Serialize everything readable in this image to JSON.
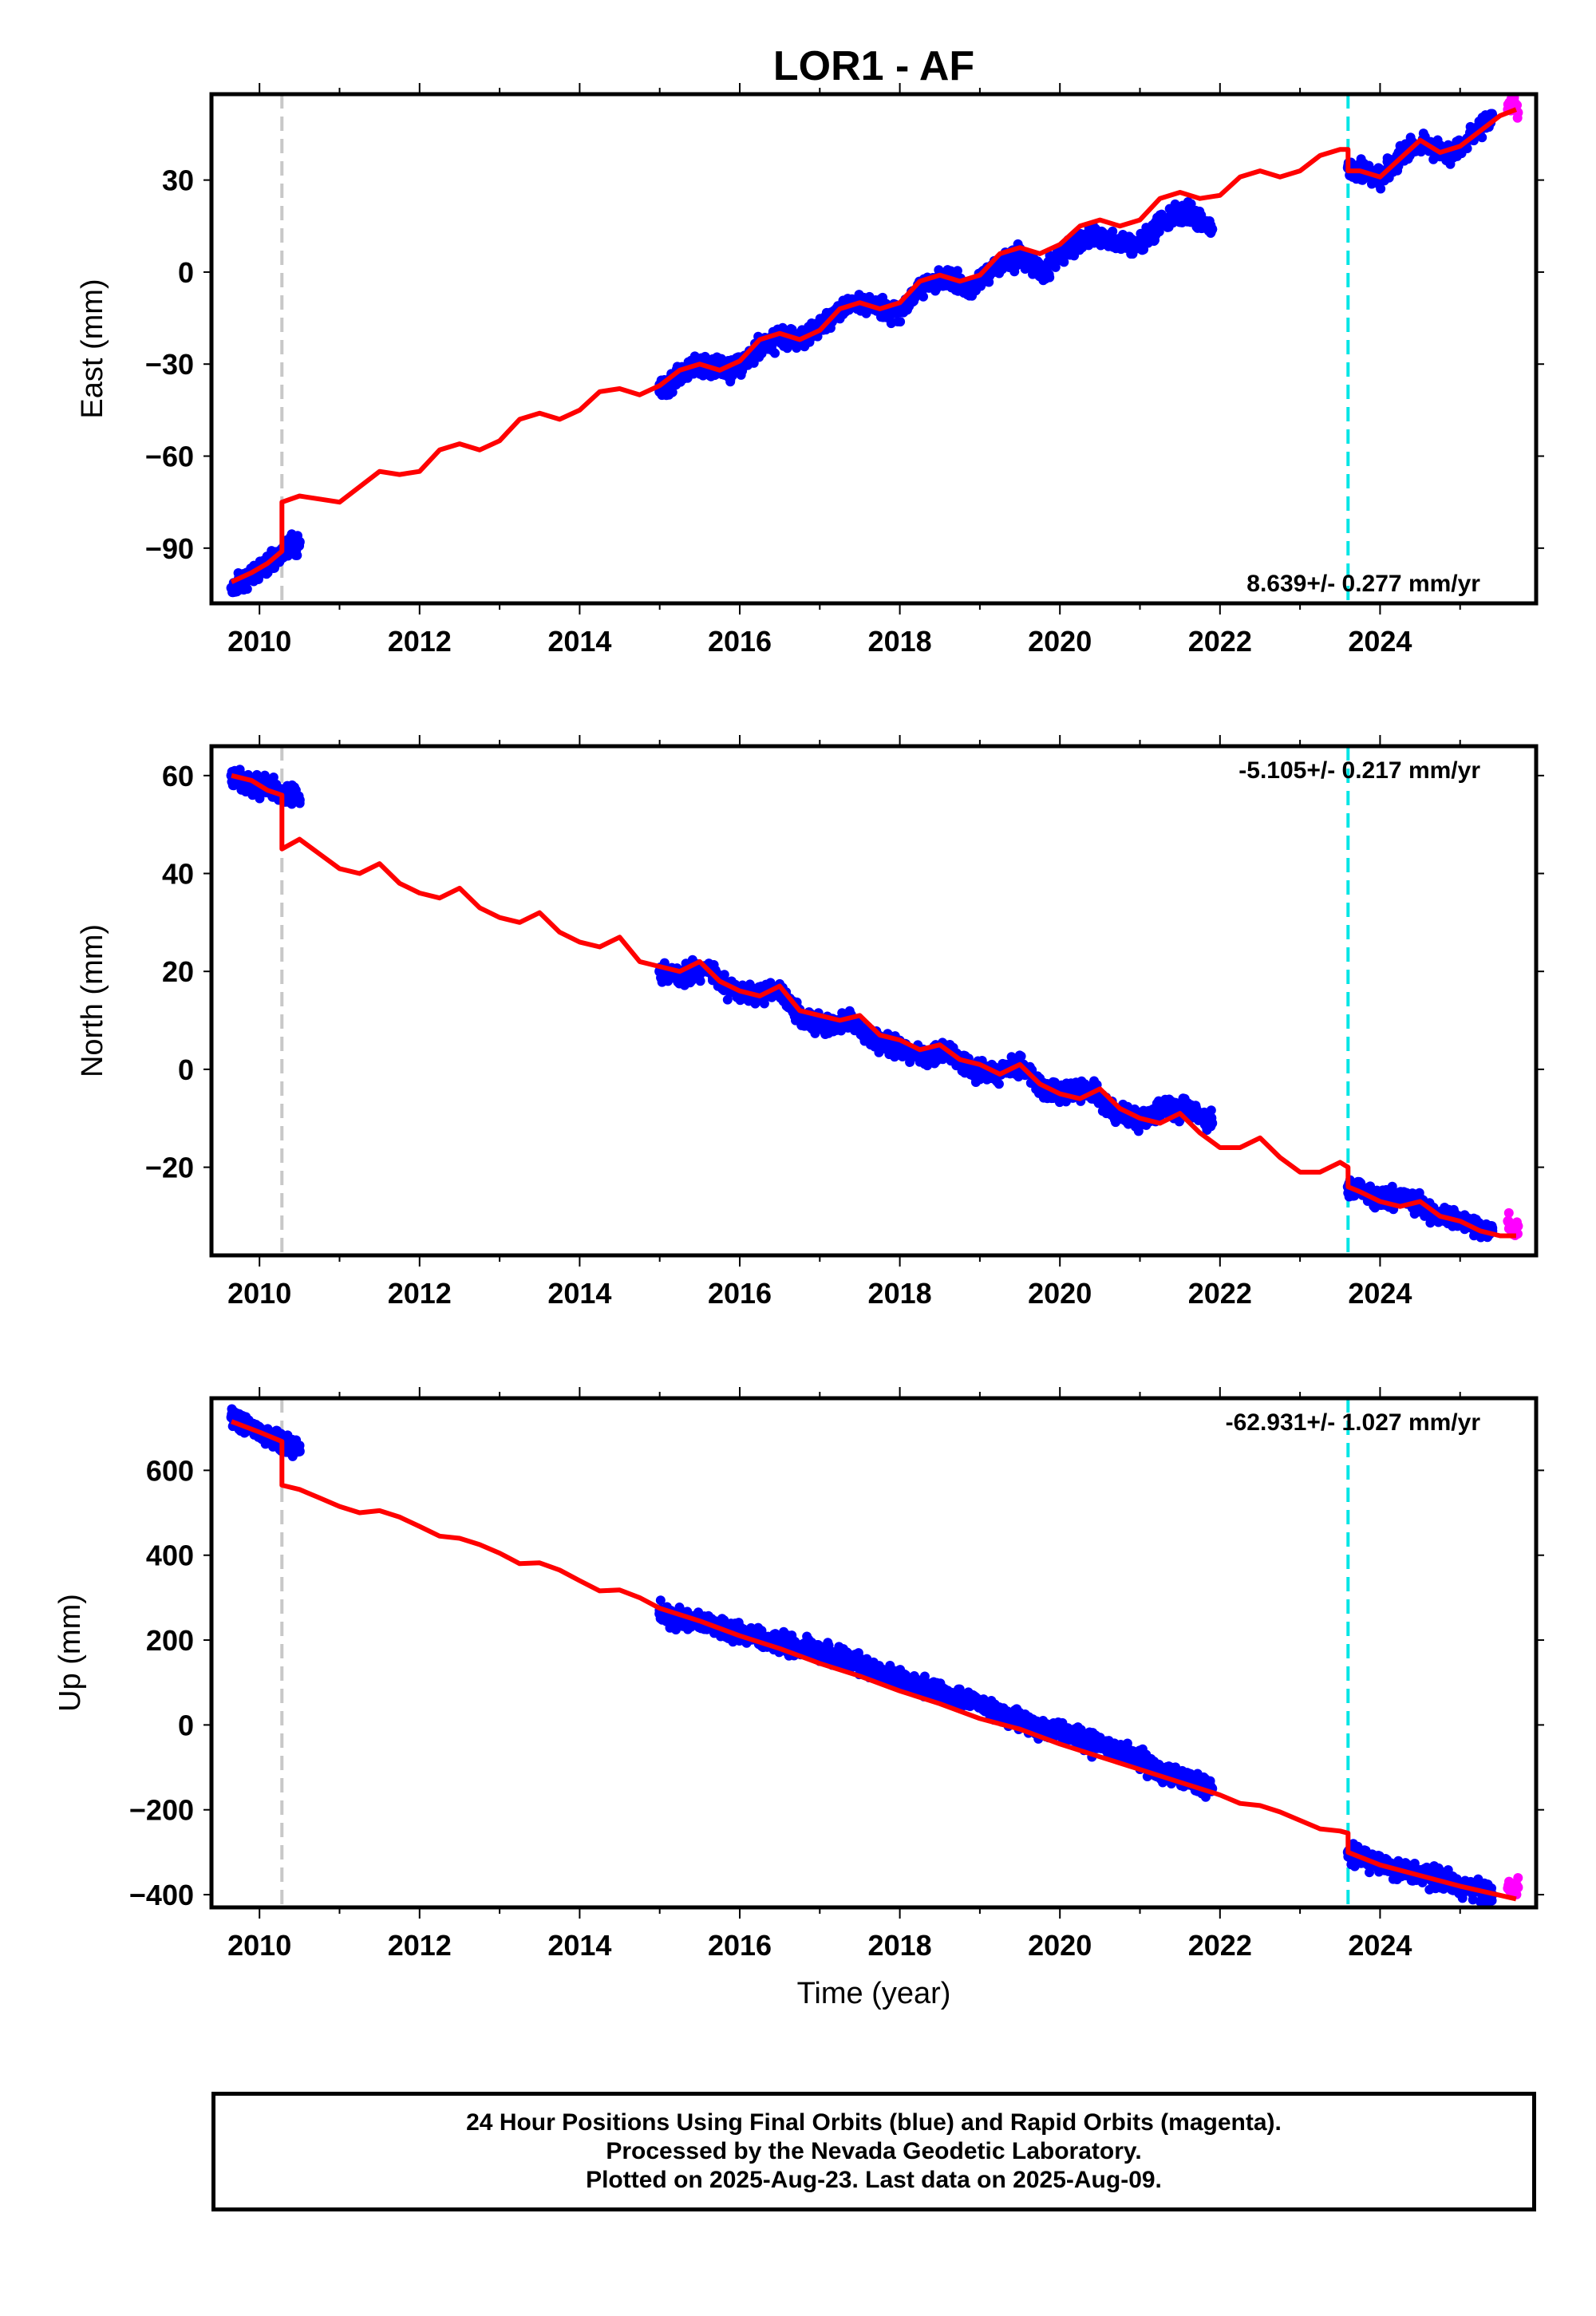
{
  "title": "LOR1 - AF",
  "colors": {
    "final": "#0000ff",
    "rapid": "#ff00ff",
    "model": "#ff0000",
    "equipment_change": "#c8c8c8",
    "event": "#00e5e5"
  },
  "chart_data": [
    {
      "type": "scatter",
      "component": "East",
      "ylabel": "East (mm)",
      "ylim": [
        -108,
        58
      ],
      "yticks": [
        30,
        0,
        -30,
        -60,
        -90
      ],
      "ytick_labels": [
        "30",
        "0",
        "−30",
        "−60",
        "−90"
      ],
      "xlim": [
        2009.4,
        2025.95
      ],
      "xticks": [
        2010,
        2012,
        2014,
        2016,
        2018,
        2020,
        2022,
        2024
      ],
      "xtick_labels": [
        "2010",
        "2012",
        "2014",
        "2016",
        "2018",
        "2020",
        "2022",
        "2024"
      ],
      "rate_label": "8.639+/- 0.277 mm/yr",
      "offset_lines": [
        2010.28,
        2023.6
      ],
      "series": [
        {
          "color": "final",
          "segments": [
            {
              "x": [
                2009.65,
                2009.9,
                2010.1,
                2010.28,
                2010.5
              ],
              "y": [
                -103,
                -99,
                -95,
                -91,
                -88
              ]
            },
            {
              "x": [
                2015.0,
                2015.3,
                2015.6,
                2015.9,
                2016.2,
                2016.5,
                2016.8,
                2017.1,
                2017.4,
                2017.7,
                2018.0,
                2018.3,
                2018.6,
                2018.9,
                2019.2,
                2019.5,
                2019.8,
                2020.1,
                2020.4,
                2020.7,
                2021.0,
                2021.3,
                2021.6,
                2021.9
              ],
              "y": [
                -39,
                -33,
                -30,
                -32,
                -26,
                -21,
                -22,
                -16,
                -10,
                -11,
                -13,
                -4,
                -2,
                -6,
                2,
                5,
                0,
                8,
                12,
                10,
                9,
                17,
                19,
                14
              ]
            },
            {
              "x": [
                2023.6,
                2023.8,
                2024.0,
                2024.2,
                2024.4,
                2024.6,
                2024.8,
                2025.0,
                2025.2,
                2025.4
              ],
              "y": [
                34,
                33,
                31,
                36,
                41,
                42,
                38,
                40,
                46,
                51
              ]
            }
          ]
        },
        {
          "color": "rapid",
          "segments": [
            {
              "x": [
                2025.6,
                2025.65,
                2025.72
              ],
              "y": [
                53,
                55,
                52
              ]
            }
          ]
        }
      ],
      "model": {
        "x": [
          2009.65,
          2009.9,
          2010.1,
          2010.28,
          2010.28,
          2010.5,
          2010.75,
          2011.0,
          2011.25,
          2011.5,
          2011.75,
          2012.0,
          2012.25,
          2012.5,
          2012.75,
          2013.0,
          2013.25,
          2013.5,
          2013.75,
          2014.0,
          2014.25,
          2014.5,
          2014.75,
          2015.0,
          2015.25,
          2015.5,
          2015.75,
          2016.0,
          2016.25,
          2016.5,
          2016.75,
          2017.0,
          2017.25,
          2017.5,
          2017.75,
          2018.0,
          2018.25,
          2018.5,
          2018.75,
          2019.0,
          2019.25,
          2019.5,
          2019.75,
          2020.0,
          2020.25,
          2020.5,
          2020.75,
          2021.0,
          2021.25,
          2021.5,
          2021.75,
          2022.0,
          2022.25,
          2022.5,
          2022.75,
          2023.0,
          2023.25,
          2023.5,
          2023.6,
          2023.6,
          2023.75,
          2024.0,
          2024.25,
          2024.5,
          2024.75,
          2025.0,
          2025.25,
          2025.5,
          2025.7
        ],
        "y": [
          -101,
          -98,
          -95,
          -91,
          -75,
          -73,
          -74,
          -75,
          -70,
          -65,
          -66,
          -65,
          -58,
          -56,
          -58,
          -55,
          -48,
          -46,
          -48,
          -45,
          -39,
          -38,
          -40,
          -37,
          -32,
          -30,
          -32,
          -29,
          -22,
          -20,
          -22,
          -19,
          -12,
          -10,
          -12,
          -10,
          -3,
          -1,
          -3,
          -1,
          6,
          8,
          6,
          9,
          15,
          17,
          15,
          17,
          24,
          26,
          24,
          25,
          31,
          33,
          31,
          33,
          38,
          40,
          40,
          33,
          33,
          31,
          37,
          43,
          39,
          41,
          46,
          51,
          53
        ]
      }
    },
    {
      "type": "scatter",
      "component": "North",
      "ylabel": "North (mm)",
      "ylim": [
        -38,
        66
      ],
      "yticks": [
        60,
        40,
        20,
        0,
        -20
      ],
      "ytick_labels": [
        "60",
        "40",
        "20",
        "0",
        "−20"
      ],
      "xlim": [
        2009.4,
        2025.95
      ],
      "xticks": [
        2010,
        2012,
        2014,
        2016,
        2018,
        2020,
        2022,
        2024
      ],
      "xtick_labels": [
        "2010",
        "2012",
        "2014",
        "2016",
        "2018",
        "2020",
        "2022",
        "2024"
      ],
      "rate_label": "-5.105+/- 0.217 mm/yr",
      "offset_lines": [
        2010.28,
        2023.6
      ],
      "series": [
        {
          "color": "final",
          "segments": [
            {
              "x": [
                2009.65,
                2009.9,
                2010.1,
                2010.28,
                2010.5
              ],
              "y": [
                60,
                58,
                58,
                56,
                55
              ]
            },
            {
              "x": [
                2015.0,
                2015.3,
                2015.6,
                2015.9,
                2016.2,
                2016.5,
                2016.8,
                2017.1,
                2017.4,
                2017.7,
                2018.0,
                2018.3,
                2018.6,
                2018.9,
                2019.2,
                2019.5,
                2019.8,
                2020.1,
                2020.4,
                2020.7,
                2021.0,
                2021.3,
                2021.6,
                2021.9
              ],
              "y": [
                20,
                19,
                21,
                16,
                15,
                16,
                10,
                9,
                10,
                6,
                4,
                3,
                4,
                0,
                -1,
                1,
                -4,
                -5,
                -4,
                -9,
                -10,
                -8,
                -8,
                -11
              ]
            },
            {
              "x": [
                2023.6,
                2023.8,
                2024.0,
                2024.2,
                2024.4,
                2024.6,
                2024.8,
                2025.0,
                2025.2,
                2025.4
              ],
              "y": [
                -24,
                -25,
                -27,
                -26,
                -27,
                -29,
                -30,
                -31,
                -32,
                -33
              ]
            }
          ]
        },
        {
          "color": "rapid",
          "segments": [
            {
              "x": [
                2025.6,
                2025.65,
                2025.72
              ],
              "y": [
                -31,
                -33,
                -32
              ]
            }
          ]
        }
      ],
      "model": {
        "x": [
          2009.65,
          2009.9,
          2010.1,
          2010.28,
          2010.28,
          2010.5,
          2010.75,
          2011.0,
          2011.25,
          2011.5,
          2011.75,
          2012.0,
          2012.25,
          2012.5,
          2012.75,
          2013.0,
          2013.25,
          2013.5,
          2013.75,
          2014.0,
          2014.25,
          2014.5,
          2014.75,
          2015.0,
          2015.25,
          2015.5,
          2015.75,
          2016.0,
          2016.25,
          2016.5,
          2016.75,
          2017.0,
          2017.25,
          2017.5,
          2017.75,
          2018.0,
          2018.25,
          2018.5,
          2018.75,
          2019.0,
          2019.25,
          2019.5,
          2019.75,
          2020.0,
          2020.25,
          2020.5,
          2020.75,
          2021.0,
          2021.25,
          2021.5,
          2021.75,
          2022.0,
          2022.25,
          2022.5,
          2022.75,
          2023.0,
          2023.25,
          2023.5,
          2023.6,
          2023.6,
          2023.75,
          2024.0,
          2024.25,
          2024.5,
          2024.75,
          2025.0,
          2025.25,
          2025.5,
          2025.7
        ],
        "y": [
          60,
          59,
          57,
          56,
          45,
          47,
          44,
          41,
          40,
          42,
          38,
          36,
          35,
          37,
          33,
          31,
          30,
          32,
          28,
          26,
          25,
          27,
          22,
          21,
          20,
          22,
          18,
          16,
          15,
          17,
          12,
          11,
          10,
          11,
          7,
          6,
          4,
          5,
          2,
          1,
          -1,
          1,
          -3,
          -5,
          -6,
          -4,
          -8,
          -10,
          -11,
          -9,
          -13,
          -16,
          -16,
          -14,
          -18,
          -21,
          -21,
          -19,
          -20,
          -24,
          -25,
          -27,
          -28,
          -27,
          -30,
          -31,
          -33,
          -34,
          -34
        ]
      }
    },
    {
      "type": "scatter",
      "component": "Up",
      "ylabel": "Up (mm)",
      "ylim": [
        -430,
        770
      ],
      "yticks": [
        600,
        400,
        200,
        0,
        -200,
        -400
      ],
      "ytick_labels": [
        "600",
        "400",
        "200",
        "0",
        "−200",
        "−400"
      ],
      "xlim": [
        2009.4,
        2025.95
      ],
      "xticks": [
        2010,
        2012,
        2014,
        2016,
        2018,
        2020,
        2022,
        2024
      ],
      "xtick_labels": [
        "2010",
        "2012",
        "2014",
        "2016",
        "2018",
        "2020",
        "2022",
        "2024"
      ],
      "xlabel": "Time (year)",
      "rate_label": "-62.931+/- 1.027 mm/yr",
      "offset_lines": [
        2010.28,
        2023.6
      ],
      "series": [
        {
          "color": "final",
          "segments": [
            {
              "x": [
                2009.65,
                2009.9,
                2010.1,
                2010.28,
                2010.5
              ],
              "y": [
                725,
                700,
                680,
                665,
                645
              ]
            },
            {
              "x": [
                2015.0,
                2015.3,
                2015.6,
                2015.9,
                2016.2,
                2016.5,
                2016.8,
                2017.1,
                2017.4,
                2017.7,
                2018.0,
                2018.3,
                2018.6,
                2018.9,
                2019.2,
                2019.5,
                2019.8,
                2020.1,
                2020.4,
                2020.7,
                2021.0,
                2021.3,
                2021.6,
                2021.9
              ],
              "y": [
                262,
                248,
                238,
                222,
                205,
                192,
                182,
                165,
                150,
                128,
                108,
                90,
                68,
                55,
                28,
                10,
                -5,
                -25,
                -45,
                -60,
                -85,
                -110,
                -130,
                -150
              ]
            },
            {
              "x": [
                2023.6,
                2023.8,
                2024.0,
                2024.2,
                2024.4,
                2024.6,
                2024.8,
                2025.0,
                2025.2,
                2025.4
              ],
              "y": [
                -300,
                -315,
                -330,
                -340,
                -350,
                -355,
                -365,
                -380,
                -390,
                -400
              ]
            }
          ]
        },
        {
          "color": "rapid",
          "segments": [
            {
              "x": [
                2025.6,
                2025.65,
                2025.72
              ],
              "y": [
                -385,
                -390,
                -383
              ]
            }
          ]
        }
      ],
      "model": {
        "x": [
          2009.65,
          2010.0,
          2010.28,
          2010.28,
          2010.5,
          2010.75,
          2011.0,
          2011.25,
          2011.5,
          2011.75,
          2012.0,
          2012.25,
          2012.5,
          2012.75,
          2013.0,
          2013.25,
          2013.5,
          2013.75,
          2014.0,
          2014.25,
          2014.5,
          2014.75,
          2015.0,
          2015.5,
          2016.0,
          2016.5,
          2017.0,
          2017.5,
          2018.0,
          2018.5,
          2019.0,
          2019.5,
          2020.0,
          2020.5,
          2021.0,
          2021.5,
          2022.0,
          2022.25,
          2022.5,
          2022.75,
          2023.0,
          2023.25,
          2023.5,
          2023.6,
          2023.6,
          2024.0,
          2024.5,
          2025.0,
          2025.7
        ],
        "y": [
          715,
          690,
          668,
          565,
          555,
          535,
          515,
          500,
          505,
          490,
          468,
          445,
          440,
          425,
          405,
          380,
          382,
          365,
          340,
          316,
          318,
          300,
          275,
          245,
          210,
          180,
          145,
          115,
          80,
          50,
          15,
          -10,
          -45,
          -75,
          -105,
          -135,
          -165,
          -185,
          -190,
          -205,
          -225,
          -245,
          -250,
          -255,
          -300,
          -330,
          -355,
          -380,
          -410
        ]
      }
    }
  ],
  "footer": {
    "line1": "24 Hour Positions Using Final Orbits (blue) and Rapid Orbits (magenta).",
    "line2": "Processed by the Nevada Geodetic Laboratory.",
    "line3": "Plotted on 2025-Aug-23. Last data on 2025-Aug-09."
  }
}
